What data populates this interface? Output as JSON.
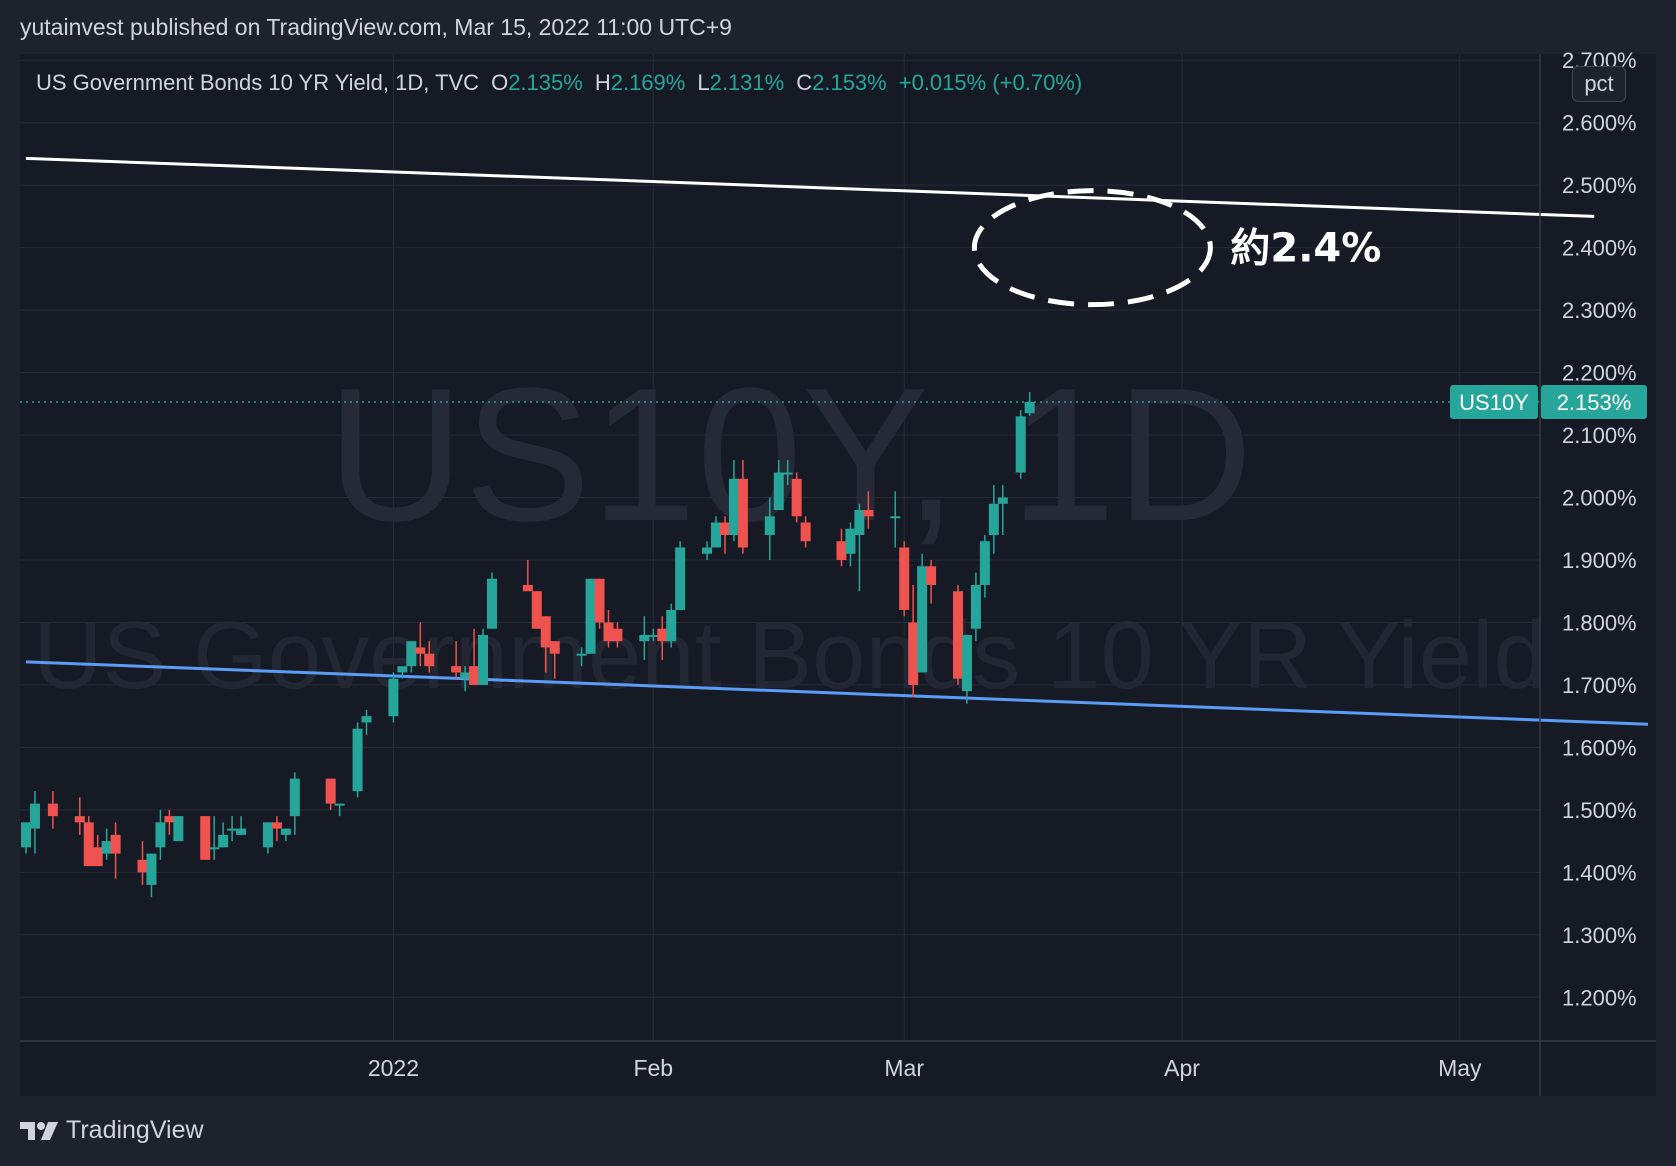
{
  "header": {
    "publish_line": "yutainvest published on TradingView.com, Mar 15, 2022 11:00 UTC+9"
  },
  "legend": {
    "symbol_title": "US Government Bonds 10 YR Yield, 1D, TVC",
    "open_label": "O",
    "open_value": "2.135%",
    "high_label": "H",
    "high_value": "2.169%",
    "low_label": "L",
    "low_value": "2.131%",
    "close_label": "C",
    "close_value": "2.153%",
    "change": "+0.015% (+0.70%)"
  },
  "watermark": {
    "line1": "US10Y, 1D",
    "line2": "US Government Bonds 10 YR Yield"
  },
  "price_scale": {
    "unit_button": "pct"
  },
  "last_price": {
    "symbol": "US10Y",
    "value": "2.153%"
  },
  "annotation": {
    "label": "約2.4%"
  },
  "footer": {
    "brand": "TradingView"
  },
  "colors": {
    "background": "#1e222d",
    "plot_background": "#161a25",
    "up": "#26a69a",
    "down": "#ef5350",
    "grid": "#262b38",
    "upper_trendline": "#ffffff",
    "lower_trendline": "#5b9cf6"
  },
  "chart_data": {
    "type": "candlestick",
    "title": "US Government Bonds 10 YR Yield, 1D, TVC",
    "y_unit": "%",
    "ylim": [
      1.13,
      2.71
    ],
    "y_ticks": [
      "1.200%",
      "1.300%",
      "1.400%",
      "1.500%",
      "1.600%",
      "1.700%",
      "1.800%",
      "1.900%",
      "2.000%",
      "2.100%",
      "2.200%",
      "2.300%",
      "2.400%",
      "2.500%",
      "2.600%",
      "2.700%"
    ],
    "y_tick_values": [
      1.2,
      1.3,
      1.4,
      1.5,
      1.6,
      1.7,
      1.8,
      1.9,
      2.0,
      2.1,
      2.2,
      2.3,
      2.4,
      2.5,
      2.6,
      2.7
    ],
    "xlim": [
      "2021-11-23",
      "2022-05-23"
    ],
    "x_ticks": [
      {
        "label": "2022",
        "date": "2022-01-03"
      },
      {
        "label": "Feb",
        "date": "2022-02-01"
      },
      {
        "label": "Mar",
        "date": "2022-03-01"
      },
      {
        "label": "Apr",
        "date": "2022-04-01"
      },
      {
        "label": "May",
        "date": "2022-05-02"
      }
    ],
    "grid": true,
    "candles": [
      {
        "date": "2021-11-23",
        "o": 1.44,
        "h": 1.48,
        "l": 1.43,
        "c": 1.48
      },
      {
        "date": "2021-11-24",
        "o": 1.47,
        "h": 1.53,
        "l": 1.43,
        "c": 1.51
      },
      {
        "date": "2021-11-26",
        "o": 1.51,
        "h": 1.53,
        "l": 1.47,
        "c": 1.49
      },
      {
        "date": "2021-11-29",
        "o": 1.49,
        "h": 1.52,
        "l": 1.46,
        "c": 1.48
      },
      {
        "date": "2021-11-30",
        "o": 1.48,
        "h": 1.49,
        "l": 1.41,
        "c": 1.41
      },
      {
        "date": "2021-12-01",
        "o": 1.44,
        "h": 1.46,
        "l": 1.41,
        "c": 1.41
      },
      {
        "date": "2021-12-02",
        "o": 1.43,
        "h": 1.47,
        "l": 1.42,
        "c": 1.45
      },
      {
        "date": "2021-12-03",
        "o": 1.46,
        "h": 1.48,
        "l": 1.39,
        "c": 1.43
      },
      {
        "date": "2021-12-06",
        "o": 1.42,
        "h": 1.45,
        "l": 1.38,
        "c": 1.4
      },
      {
        "date": "2021-12-07",
        "o": 1.38,
        "h": 1.43,
        "l": 1.36,
        "c": 1.43
      },
      {
        "date": "2021-12-08",
        "o": 1.44,
        "h": 1.5,
        "l": 1.42,
        "c": 1.48
      },
      {
        "date": "2021-12-09",
        "o": 1.49,
        "h": 1.5,
        "l": 1.46,
        "c": 1.48
      },
      {
        "date": "2021-12-10",
        "o": 1.45,
        "h": 1.49,
        "l": 1.45,
        "c": 1.49
      },
      {
        "date": "2021-12-13",
        "o": 1.49,
        "h": 1.49,
        "l": 1.42,
        "c": 1.42
      },
      {
        "date": "2021-12-14",
        "o": 1.44,
        "h": 1.49,
        "l": 1.42,
        "c": 1.44
      },
      {
        "date": "2021-12-15",
        "o": 1.44,
        "h": 1.48,
        "l": 1.44,
        "c": 1.46
      },
      {
        "date": "2021-12-16",
        "o": 1.47,
        "h": 1.49,
        "l": 1.45,
        "c": 1.47
      },
      {
        "date": "2021-12-17",
        "o": 1.46,
        "h": 1.49,
        "l": 1.46,
        "c": 1.47
      },
      {
        "date": "2021-12-20",
        "o": 1.44,
        "h": 1.48,
        "l": 1.43,
        "c": 1.48
      },
      {
        "date": "2021-12-21",
        "o": 1.48,
        "h": 1.49,
        "l": 1.45,
        "c": 1.47
      },
      {
        "date": "2021-12-22",
        "o": 1.46,
        "h": 1.47,
        "l": 1.45,
        "c": 1.47
      },
      {
        "date": "2021-12-23",
        "o": 1.49,
        "h": 1.56,
        "l": 1.46,
        "c": 1.55
      },
      {
        "date": "2021-12-27",
        "o": 1.55,
        "h": 1.55,
        "l": 1.5,
        "c": 1.51
      },
      {
        "date": "2021-12-28",
        "o": 1.51,
        "h": 1.51,
        "l": 1.49,
        "c": 1.51
      },
      {
        "date": "2021-12-30",
        "o": 1.53,
        "h": 1.64,
        "l": 1.52,
        "c": 1.63
      },
      {
        "date": "2021-12-31",
        "o": 1.64,
        "h": 1.66,
        "l": 1.62,
        "c": 1.65
      },
      {
        "date": "2022-01-03",
        "o": 1.65,
        "h": 1.72,
        "l": 1.64,
        "c": 1.71
      },
      {
        "date": "2022-01-04",
        "o": 1.72,
        "h": 1.73,
        "l": 1.71,
        "c": 1.73
      },
      {
        "date": "2022-01-05",
        "o": 1.73,
        "h": 1.77,
        "l": 1.72,
        "c": 1.77
      },
      {
        "date": "2022-01-06",
        "o": 1.76,
        "h": 1.8,
        "l": 1.73,
        "c": 1.75
      },
      {
        "date": "2022-01-07",
        "o": 1.75,
        "h": 1.77,
        "l": 1.72,
        "c": 1.73
      },
      {
        "date": "2022-01-10",
        "o": 1.73,
        "h": 1.77,
        "l": 1.71,
        "c": 1.72
      },
      {
        "date": "2022-01-11",
        "o": 1.71,
        "h": 1.73,
        "l": 1.69,
        "c": 1.72
      },
      {
        "date": "2022-01-12",
        "o": 1.73,
        "h": 1.79,
        "l": 1.7,
        "c": 1.7
      },
      {
        "date": "2022-01-13",
        "o": 1.7,
        "h": 1.79,
        "l": 1.7,
        "c": 1.78
      },
      {
        "date": "2022-01-14",
        "o": 1.79,
        "h": 1.88,
        "l": 1.79,
        "c": 1.87
      },
      {
        "date": "2022-01-18",
        "o": 1.86,
        "h": 1.9,
        "l": 1.85,
        "c": 1.85
      },
      {
        "date": "2022-01-19",
        "o": 1.85,
        "h": 1.85,
        "l": 1.79,
        "c": 1.79
      },
      {
        "date": "2022-01-20",
        "o": 1.81,
        "h": 1.81,
        "l": 1.72,
        "c": 1.76
      },
      {
        "date": "2022-01-21",
        "o": 1.77,
        "h": 1.77,
        "l": 1.71,
        "c": 1.75
      },
      {
        "date": "2022-01-24",
        "o": 1.75,
        "h": 1.76,
        "l": 1.73,
        "c": 1.75
      },
      {
        "date": "2022-01-25",
        "o": 1.75,
        "h": 1.87,
        "l": 1.75,
        "c": 1.87
      },
      {
        "date": "2022-01-26",
        "o": 1.87,
        "h": 1.87,
        "l": 1.79,
        "c": 1.8
      },
      {
        "date": "2022-01-27",
        "o": 1.8,
        "h": 1.82,
        "l": 1.76,
        "c": 1.77
      },
      {
        "date": "2022-01-28",
        "o": 1.79,
        "h": 1.8,
        "l": 1.76,
        "c": 1.77
      },
      {
        "date": "2022-01-31",
        "o": 1.77,
        "h": 1.81,
        "l": 1.74,
        "c": 1.78
      },
      {
        "date": "2022-02-01",
        "o": 1.78,
        "h": 1.79,
        "l": 1.77,
        "c": 1.78
      },
      {
        "date": "2022-02-02",
        "o": 1.79,
        "h": 1.81,
        "l": 1.74,
        "c": 1.77
      },
      {
        "date": "2022-02-03",
        "o": 1.77,
        "h": 1.83,
        "l": 1.76,
        "c": 1.82
      },
      {
        "date": "2022-02-04",
        "o": 1.82,
        "h": 1.93,
        "l": 1.82,
        "c": 1.92
      },
      {
        "date": "2022-02-07",
        "o": 1.91,
        "h": 1.93,
        "l": 1.9,
        "c": 1.92
      },
      {
        "date": "2022-02-08",
        "o": 1.92,
        "h": 1.97,
        "l": 1.92,
        "c": 1.96
      },
      {
        "date": "2022-02-09",
        "o": 1.96,
        "h": 1.97,
        "l": 1.91,
        "c": 1.94
      },
      {
        "date": "2022-02-10",
        "o": 1.94,
        "h": 2.06,
        "l": 1.93,
        "c": 2.03
      },
      {
        "date": "2022-02-11",
        "o": 2.03,
        "h": 2.06,
        "l": 1.91,
        "c": 1.92
      },
      {
        "date": "2022-02-14",
        "o": 1.94,
        "h": 2.0,
        "l": 1.9,
        "c": 1.97
      },
      {
        "date": "2022-02-15",
        "o": 1.98,
        "h": 2.06,
        "l": 1.98,
        "c": 2.04
      },
      {
        "date": "2022-02-16",
        "o": 2.04,
        "h": 2.06,
        "l": 2.02,
        "c": 2.04
      },
      {
        "date": "2022-02-17",
        "o": 2.03,
        "h": 2.04,
        "l": 1.96,
        "c": 1.97
      },
      {
        "date": "2022-02-18",
        "o": 1.96,
        "h": 1.97,
        "l": 1.92,
        "c": 1.93
      },
      {
        "date": "2022-02-22",
        "o": 1.93,
        "h": 1.95,
        "l": 1.89,
        "c": 1.9
      },
      {
        "date": "2022-02-23",
        "o": 1.91,
        "h": 1.96,
        "l": 1.89,
        "c": 1.95
      },
      {
        "date": "2022-02-24",
        "o": 1.94,
        "h": 1.99,
        "l": 1.85,
        "c": 1.98
      },
      {
        "date": "2022-02-25",
        "o": 1.98,
        "h": 2.01,
        "l": 1.95,
        "c": 1.97
      },
      {
        "date": "2022-02-28",
        "o": 1.97,
        "h": 2.01,
        "l": 1.92,
        "c": 1.97
      },
      {
        "date": "2022-03-01",
        "o": 1.92,
        "h": 1.93,
        "l": 1.81,
        "c": 1.82
      },
      {
        "date": "2022-03-02",
        "o": 1.8,
        "h": 1.86,
        "l": 1.68,
        "c": 1.7
      },
      {
        "date": "2022-03-03",
        "o": 1.72,
        "h": 1.91,
        "l": 1.72,
        "c": 1.89
      },
      {
        "date": "2022-03-04",
        "o": 1.89,
        "h": 1.9,
        "l": 1.83,
        "c": 1.86
      },
      {
        "date": "2022-03-07",
        "o": 1.85,
        "h": 1.86,
        "l": 1.7,
        "c": 1.71
      },
      {
        "date": "2022-03-08",
        "o": 1.69,
        "h": 1.78,
        "l": 1.67,
        "c": 1.78
      },
      {
        "date": "2022-03-09",
        "o": 1.79,
        "h": 1.88,
        "l": 1.77,
        "c": 1.86
      },
      {
        "date": "2022-03-10",
        "o": 1.86,
        "h": 1.94,
        "l": 1.84,
        "c": 1.93
      },
      {
        "date": "2022-03-11",
        "o": 1.94,
        "h": 2.02,
        "l": 1.91,
        "c": 1.99
      },
      {
        "date": "2022-03-12",
        "o": 1.99,
        "h": 2.02,
        "l": 1.94,
        "c": 2.0
      },
      {
        "date": "2022-03-14",
        "o": 2.04,
        "h": 2.14,
        "l": 2.03,
        "c": 2.13
      },
      {
        "date": "2022-03-15",
        "o": 2.135,
        "h": 2.169,
        "l": 2.131,
        "c": 2.153
      }
    ],
    "last_price": 2.153,
    "trendlines": [
      {
        "name": "",
        "color": "white",
        "from": {
          "date": "2021-11-23",
          "value": 2.543
        },
        "to": {
          "date": "2022-05-17",
          "value": 2.45
        }
      },
      {
        "name": "",
        "color": "blue",
        "from": {
          "date": "2021-11-23",
          "value": 1.737
        },
        "to": {
          "date": "2022-05-23",
          "value": 1.637
        }
      }
    ],
    "annotations": [
      {
        "shape": "dashed-ellipse",
        "center": {
          "date": "2022-03-22",
          "value": 2.4
        },
        "text": "約2.4%"
      }
    ]
  }
}
